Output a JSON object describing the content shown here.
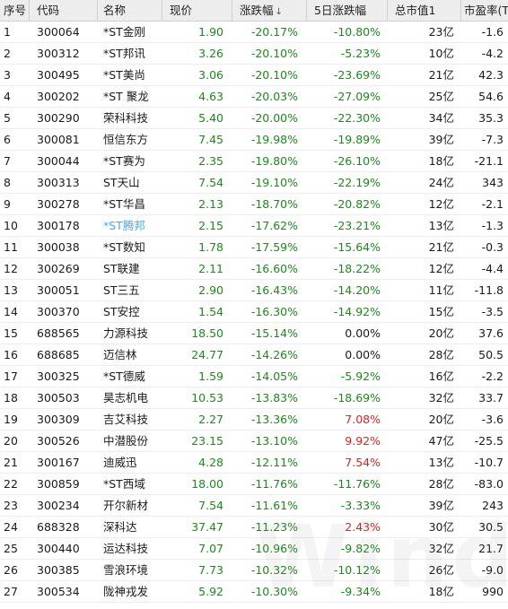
{
  "watermark": "Wind",
  "columns": {
    "idx": "序号",
    "code": "代码",
    "name": "名称",
    "price": "现价",
    "chg": "涨跌幅",
    "chg5": "5日涨跌幅",
    "cap": "总市值1",
    "pe": "市盈率(TTM)"
  },
  "sort_indicator": "↓",
  "colors": {
    "down": "#1a8a1a",
    "up": "#e32020",
    "link": "#4aa8e8"
  },
  "rows": [
    {
      "idx": "1",
      "code": "300064",
      "name": "*ST金刚",
      "price": "1.90",
      "chg": "-20.17%",
      "chg5": "-10.80%",
      "cap": "23亿",
      "pe": "-1.6",
      "chg5_color": "green"
    },
    {
      "idx": "2",
      "code": "300312",
      "name": "*ST邦讯",
      "price": "3.26",
      "chg": "-20.10%",
      "chg5": "-5.23%",
      "cap": "10亿",
      "pe": "-4.2",
      "chg5_color": "green"
    },
    {
      "idx": "3",
      "code": "300495",
      "name": "*ST美尚",
      "price": "3.06",
      "chg": "-20.10%",
      "chg5": "-23.69%",
      "cap": "21亿",
      "pe": "42.3",
      "chg5_color": "green"
    },
    {
      "idx": "4",
      "code": "300202",
      "name": "*ST 聚龙",
      "price": "4.63",
      "chg": "-20.03%",
      "chg5": "-27.09%",
      "cap": "25亿",
      "pe": "54.6",
      "chg5_color": "green"
    },
    {
      "idx": "5",
      "code": "300290",
      "name": "荣科科技",
      "price": "5.40",
      "chg": "-20.00%",
      "chg5": "-22.30%",
      "cap": "34亿",
      "pe": "35.3",
      "chg5_color": "green"
    },
    {
      "idx": "6",
      "code": "300081",
      "name": "恒信东方",
      "price": "7.45",
      "chg": "-19.98%",
      "chg5": "-19.89%",
      "cap": "39亿",
      "pe": "-7.3",
      "chg5_color": "green"
    },
    {
      "idx": "7",
      "code": "300044",
      "name": "*ST赛为",
      "price": "2.35",
      "chg": "-19.80%",
      "chg5": "-26.10%",
      "cap": "18亿",
      "pe": "-21.1",
      "chg5_color": "green"
    },
    {
      "idx": "8",
      "code": "300313",
      "name": "ST天山",
      "price": "7.54",
      "chg": "-19.10%",
      "chg5": "-22.19%",
      "cap": "24亿",
      "pe": "343",
      "chg5_color": "green"
    },
    {
      "idx": "9",
      "code": "300278",
      "name": "*ST华昌",
      "price": "2.13",
      "chg": "-18.70%",
      "chg5": "-20.82%",
      "cap": "12亿",
      "pe": "-2.1",
      "chg5_color": "green"
    },
    {
      "idx": "10",
      "code": "300178",
      "name": "*ST腾邦",
      "price": "2.15",
      "chg": "-17.62%",
      "chg5": "-23.21%",
      "cap": "13亿",
      "pe": "-1.3",
      "chg5_color": "green",
      "name_link": true
    },
    {
      "idx": "11",
      "code": "300038",
      "name": "*ST数知",
      "price": "1.78",
      "chg": "-17.59%",
      "chg5": "-15.64%",
      "cap": "21亿",
      "pe": "-0.3",
      "chg5_color": "green"
    },
    {
      "idx": "12",
      "code": "300269",
      "name": "ST联建",
      "price": "2.11",
      "chg": "-16.60%",
      "chg5": "-18.22%",
      "cap": "12亿",
      "pe": "-4.4",
      "chg5_color": "green"
    },
    {
      "idx": "13",
      "code": "300051",
      "name": "ST三五",
      "price": "2.90",
      "chg": "-16.43%",
      "chg5": "-14.20%",
      "cap": "11亿",
      "pe": "-11.8",
      "chg5_color": "green"
    },
    {
      "idx": "14",
      "code": "300370",
      "name": "ST安控",
      "price": "1.54",
      "chg": "-16.30%",
      "chg5": "-14.92%",
      "cap": "15亿",
      "pe": "-3.5",
      "chg5_color": "green"
    },
    {
      "idx": "15",
      "code": "688565",
      "name": "力源科技",
      "price": "18.50",
      "chg": "-15.14%",
      "chg5": "0.00%",
      "cap": "20亿",
      "pe": "37.6",
      "chg5_color": "black"
    },
    {
      "idx": "16",
      "code": "688685",
      "name": "迈信林",
      "price": "24.77",
      "chg": "-14.26%",
      "chg5": "0.00%",
      "cap": "28亿",
      "pe": "50.5",
      "chg5_color": "black"
    },
    {
      "idx": "17",
      "code": "300325",
      "name": "*ST德威",
      "price": "1.59",
      "chg": "-14.05%",
      "chg5": "-5.92%",
      "cap": "16亿",
      "pe": "-2.2",
      "chg5_color": "green"
    },
    {
      "idx": "18",
      "code": "300503",
      "name": "昊志机电",
      "price": "10.53",
      "chg": "-13.83%",
      "chg5": "-18.69%",
      "cap": "32亿",
      "pe": "33.7",
      "chg5_color": "green"
    },
    {
      "idx": "19",
      "code": "300309",
      "name": "吉艾科技",
      "price": "2.27",
      "chg": "-13.36%",
      "chg5": "7.08%",
      "cap": "20亿",
      "pe": "-3.6",
      "chg5_color": "red"
    },
    {
      "idx": "20",
      "code": "300526",
      "name": "中潜股份",
      "price": "23.15",
      "chg": "-13.10%",
      "chg5": "9.92%",
      "cap": "47亿",
      "pe": "-25.5",
      "chg5_color": "red"
    },
    {
      "idx": "21",
      "code": "300167",
      "name": "迪威迅",
      "price": "4.28",
      "chg": "-12.11%",
      "chg5": "7.54%",
      "cap": "13亿",
      "pe": "-10.7",
      "chg5_color": "red"
    },
    {
      "idx": "22",
      "code": "300859",
      "name": "*ST西域",
      "price": "18.00",
      "chg": "-11.76%",
      "chg5": "-11.76%",
      "cap": "28亿",
      "pe": "-83.0",
      "chg5_color": "green"
    },
    {
      "idx": "23",
      "code": "300234",
      "name": "开尔新材",
      "price": "7.54",
      "chg": "-11.61%",
      "chg5": "-3.33%",
      "cap": "39亿",
      "pe": "243",
      "chg5_color": "green"
    },
    {
      "idx": "24",
      "code": "688328",
      "name": "深科达",
      "price": "37.47",
      "chg": "-11.23%",
      "chg5": "2.43%",
      "cap": "30亿",
      "pe": "30.5",
      "chg5_color": "red"
    },
    {
      "idx": "25",
      "code": "300440",
      "name": "运达科技",
      "price": "7.07",
      "chg": "-10.96%",
      "chg5": "-9.82%",
      "cap": "32亿",
      "pe": "21.7",
      "chg5_color": "green"
    },
    {
      "idx": "26",
      "code": "300385",
      "name": "雪浪环境",
      "price": "7.73",
      "chg": "-10.32%",
      "chg5": "-10.12%",
      "cap": "26亿",
      "pe": "-9.0",
      "chg5_color": "green"
    },
    {
      "idx": "27",
      "code": "300534",
      "name": "陇神戎发",
      "price": "5.92",
      "chg": "-10.30%",
      "chg5": "-9.34%",
      "cap": "18亿",
      "pe": "990",
      "chg5_color": "green"
    }
  ]
}
